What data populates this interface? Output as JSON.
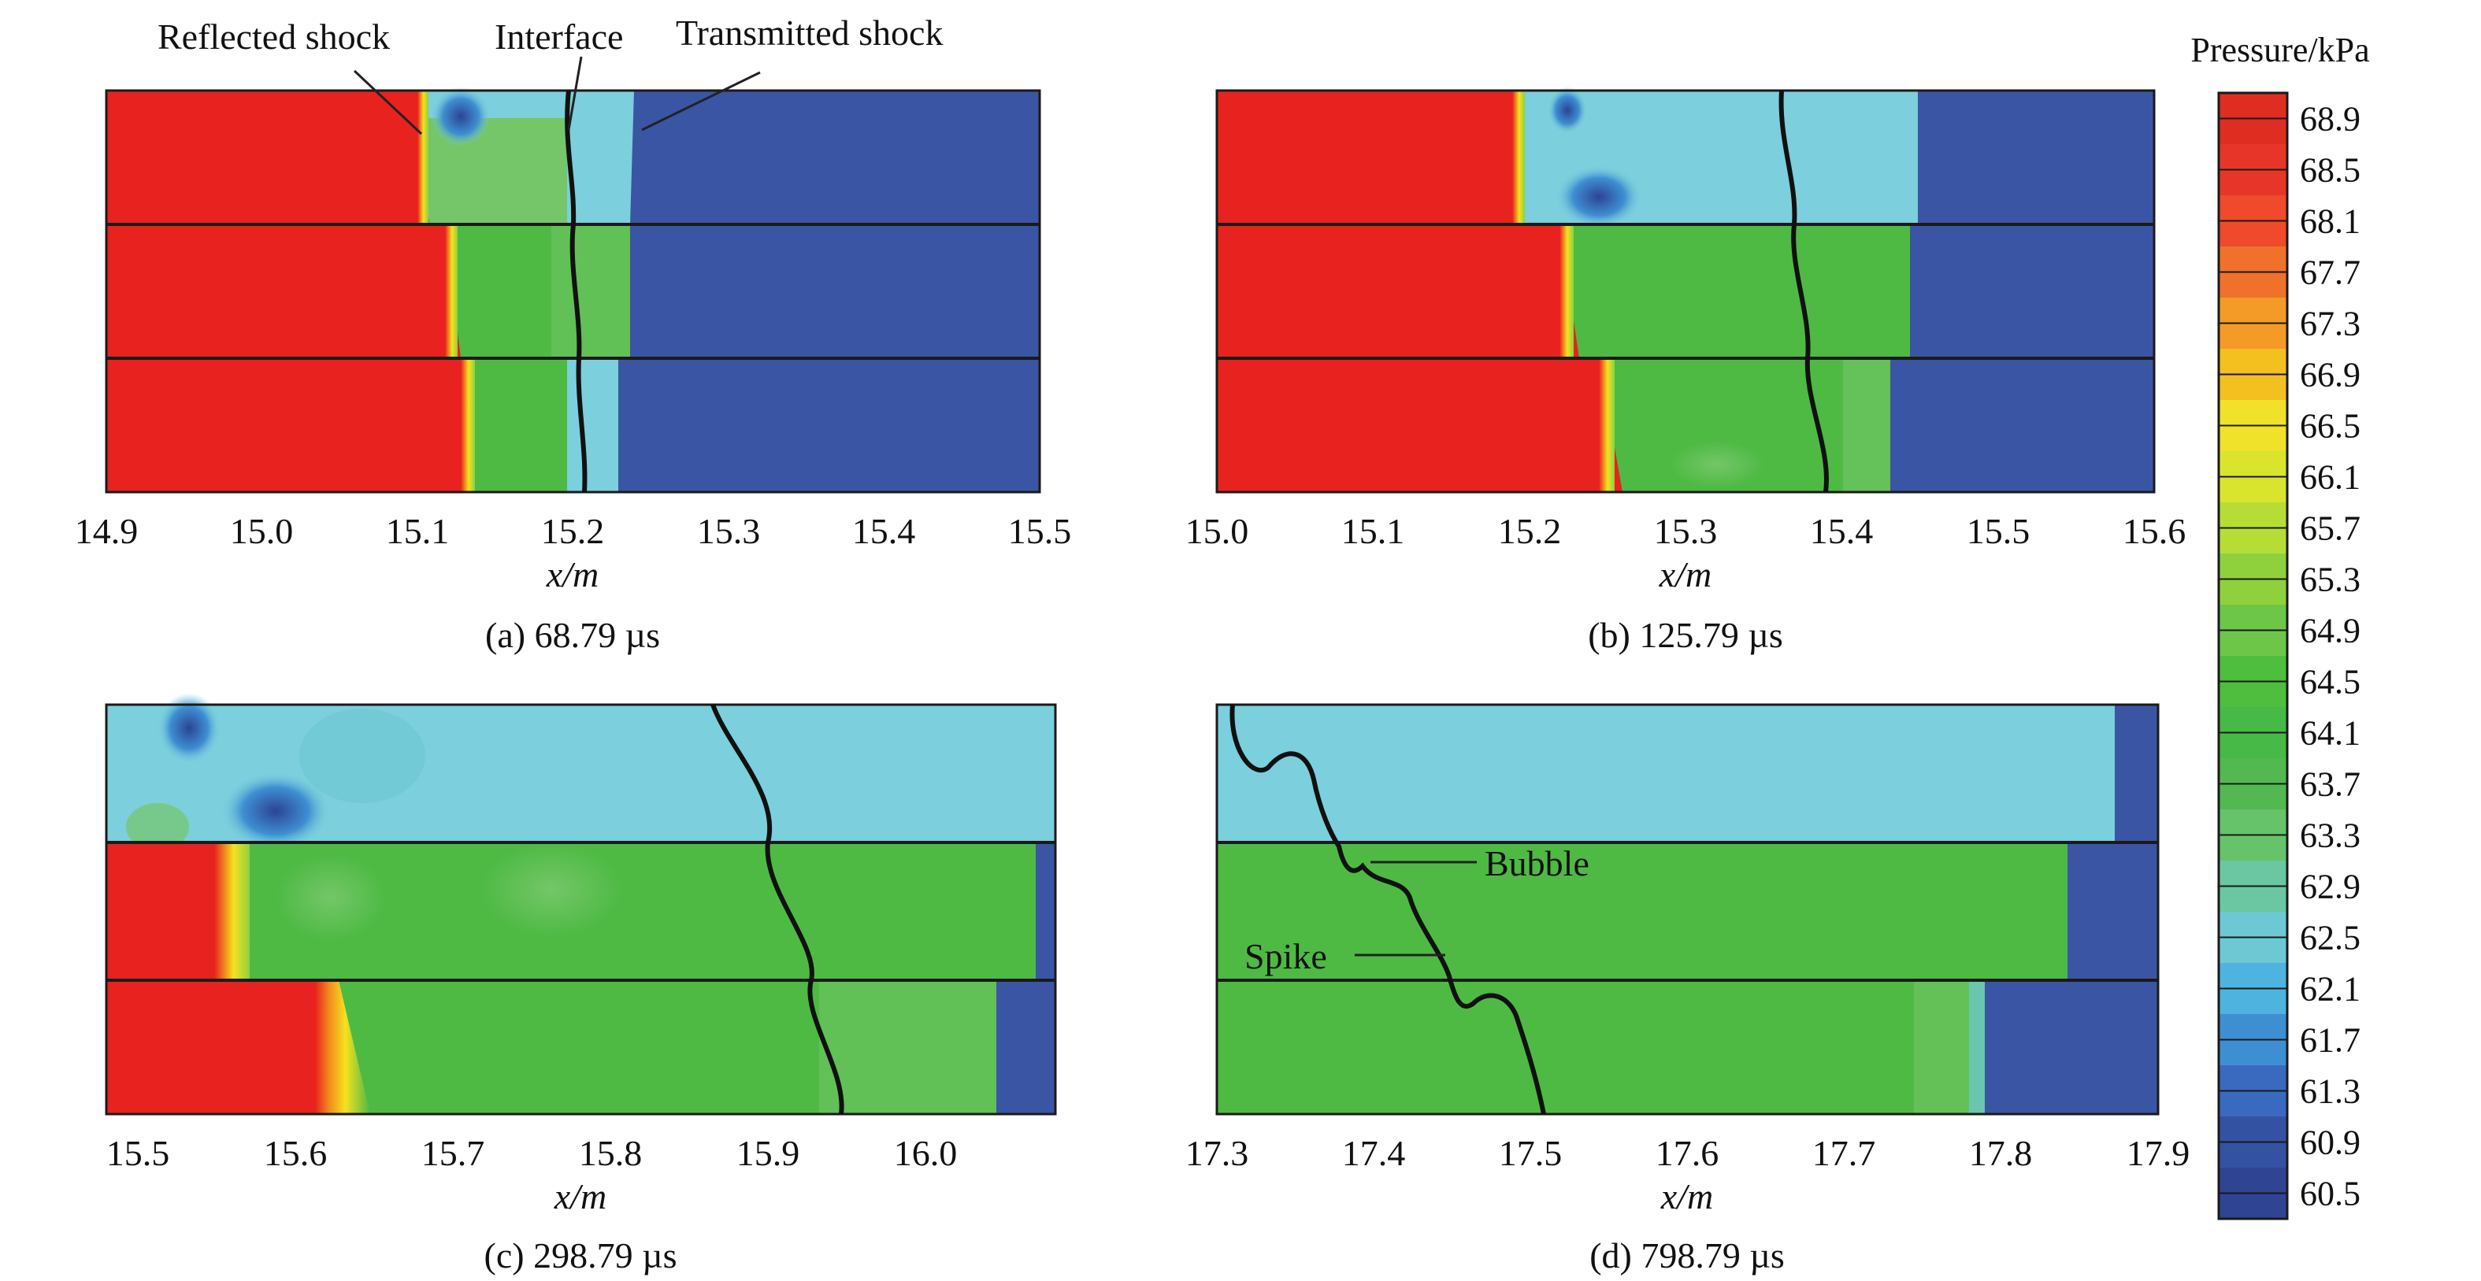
{
  "colorbar": {
    "title": "Pressure/kPa",
    "ticks": [
      "68.9",
      "68.5",
      "68.1",
      "67.7",
      "67.3",
      "66.9",
      "66.5",
      "66.1",
      "65.7",
      "65.3",
      "64.9",
      "64.5",
      "64.1",
      "63.7",
      "63.3",
      "62.9",
      "62.5",
      "62.1",
      "61.7",
      "61.3",
      "60.9",
      "60.5"
    ],
    "colors": [
      "#e02d22",
      "#e8352a",
      "#ee4a2b",
      "#f0712a",
      "#f39b26",
      "#f4c01f",
      "#f0e12a",
      "#d8e52c",
      "#b6dd35",
      "#8ed13c",
      "#6ec648",
      "#4fbd3e",
      "#47b947",
      "#52b950",
      "#66c36a",
      "#6ac7a2",
      "#6dc8d4",
      "#4fb3df",
      "#3e8fd2",
      "#3a6ac0",
      "#3452a2",
      "#2f4493"
    ]
  },
  "colors": {
    "high": "#e8221e",
    "green": "#4eba44",
    "green_light": "#74c668",
    "cyan": "#7ccfdc",
    "blue": "#3a55a4",
    "dark_blue": "#2c4494"
  },
  "panels": [
    {
      "caption": "(a) 68.79 µs",
      "xlabel": "x/m",
      "xticks": [
        "14.9",
        "15.0",
        "15.1",
        "15.2",
        "15.3",
        "15.4",
        "15.5"
      ],
      "annotations": [
        "Reflected shock",
        "Interface",
        "Transmitted shock"
      ]
    },
    {
      "caption": "(b) 125.79 µs",
      "xlabel": "x/m",
      "xticks": [
        "15.0",
        "15.1",
        "15.2",
        "15.3",
        "15.4",
        "15.5",
        "15.6"
      ],
      "annotations": []
    },
    {
      "caption": "(c) 298.79 µs",
      "xlabel": "x/m",
      "xticks": [
        "15.5",
        "15.6",
        "15.7",
        "15.8",
        "15.9",
        "16.0"
      ],
      "annotations": []
    },
    {
      "caption": "(d) 798.79 µs",
      "xlabel": "x/m",
      "xticks": [
        "17.3",
        "17.4",
        "17.5",
        "17.6",
        "17.7",
        "17.8",
        "17.9"
      ],
      "annotations": [
        "Bubble",
        "Spike"
      ]
    }
  ]
}
